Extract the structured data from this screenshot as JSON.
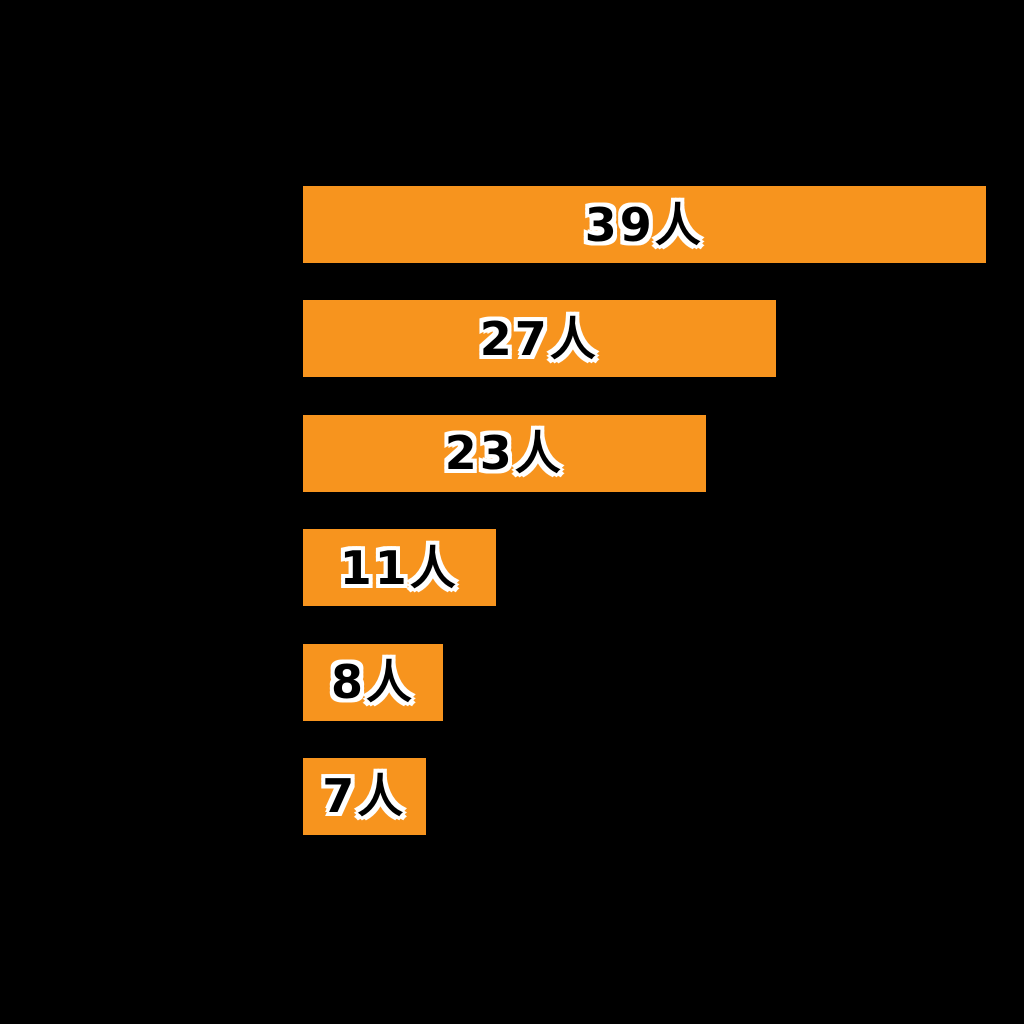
{
  "page": {
    "background_color": "#000000"
  },
  "chart_data": {
    "type": "bar",
    "orientation": "horizontal",
    "values": [
      39,
      27,
      23,
      11,
      8,
      7
    ],
    "bar_labels": [
      "39人",
      "27人",
      "23人",
      "11人",
      "8人",
      "7人"
    ],
    "unit": "人",
    "xlim": [
      0,
      40
    ],
    "grid": false,
    "legend": false,
    "axes_visible": false,
    "bar_color": "#F7941E",
    "label_text_color": "#000000",
    "label_outline_color": "#FFFFFF",
    "background_color": "#000000"
  }
}
